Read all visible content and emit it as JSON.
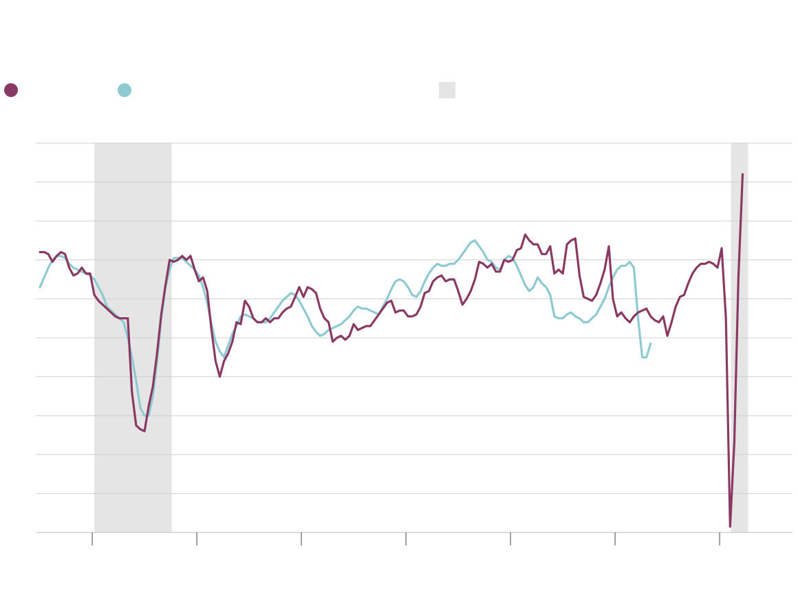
{
  "legend": {
    "series_a": {
      "label": "",
      "color": "#8a3a62"
    },
    "series_b": {
      "label": "",
      "color": "#8ecad2"
    },
    "shading": {
      "label": "",
      "color": "#e5e5e5"
    }
  },
  "chart_data": {
    "type": "line",
    "title": "",
    "xlabel": "",
    "ylabel": "",
    "xlim": [
      0,
      180
    ],
    "ylim": [
      0,
      10
    ],
    "grid": true,
    "x_ticks": [
      13.5,
      38.5,
      63.5,
      88.5,
      113.5,
      138.5,
      163.5
    ],
    "shaded_ranges": [
      [
        14,
        32.5
      ],
      [
        166.2,
        170.3
      ]
    ],
    "series": [
      {
        "color": "#8a3a62",
        "values": [
          7.2,
          7.2,
          7.15,
          6.95,
          7.1,
          7.2,
          7.15,
          6.8,
          6.6,
          6.65,
          6.8,
          6.65,
          6.65,
          6.1,
          5.95,
          5.85,
          5.75,
          5.65,
          5.55,
          5.5,
          5.5,
          5.5,
          3.6,
          2.75,
          2.65,
          2.6,
          3.25,
          3.75,
          4.6,
          5.6,
          6.35,
          7.0,
          6.95,
          7.0,
          7.1,
          7.0,
          7.1,
          6.75,
          6.45,
          6.55,
          6.2,
          5.2,
          4.4,
          4.0,
          4.4,
          4.6,
          4.9,
          5.4,
          5.35,
          5.95,
          5.8,
          5.5,
          5.4,
          5.4,
          5.5,
          5.4,
          5.5,
          5.5,
          5.65,
          5.75,
          5.8,
          6.05,
          6.3,
          6.05,
          6.3,
          6.25,
          6.15,
          5.75,
          5.5,
          5.4,
          4.9,
          5.0,
          5.05,
          4.95,
          5.05,
          5.35,
          5.2,
          5.25,
          5.3,
          5.3,
          5.45,
          5.6,
          5.75,
          5.9,
          5.95,
          5.65,
          5.7,
          5.7,
          5.55,
          5.55,
          5.6,
          5.8,
          6.15,
          6.2,
          6.45,
          6.55,
          6.6,
          6.45,
          6.5,
          6.5,
          6.2,
          5.85,
          6.0,
          6.2,
          6.5,
          6.95,
          6.9,
          6.8,
          6.9,
          6.7,
          6.7,
          7.0,
          6.95,
          7.0,
          7.25,
          7.3,
          7.65,
          7.5,
          7.4,
          7.4,
          7.15,
          7.15,
          7.35,
          6.65,
          6.75,
          6.65,
          7.4,
          7.5,
          7.55,
          6.6,
          6.05,
          6.0,
          5.95,
          6.1,
          6.4,
          6.75,
          7.35,
          6.0,
          5.55,
          5.65,
          5.5,
          5.4,
          5.55,
          5.65,
          5.7,
          5.75,
          5.55,
          5.45,
          5.4,
          5.55,
          5.05,
          5.4,
          5.8,
          6.05,
          6.1,
          6.4,
          6.65,
          6.8,
          6.9,
          6.9,
          6.95,
          6.9,
          6.8,
          7.3,
          5.5,
          0.15,
          2.3,
          6.55,
          9.2
        ],
        "x_start": 1
      },
      {
        "color": "#8ecad2",
        "values": [
          6.3,
          6.55,
          6.8,
          7.0,
          7.1,
          7.1,
          7.05,
          6.9,
          6.8,
          6.75,
          6.7,
          6.65,
          6.6,
          6.5,
          6.3,
          6.1,
          5.8,
          5.7,
          5.6,
          5.5,
          5.4,
          5.0,
          4.5,
          3.9,
          3.2,
          3.0,
          3.0,
          3.5,
          4.4,
          5.5,
          6.3,
          6.75,
          7.05,
          7.05,
          7.05,
          6.95,
          6.85,
          6.75,
          6.6,
          6.3,
          5.9,
          5.35,
          4.9,
          4.65,
          4.5,
          4.8,
          5.1,
          5.3,
          5.55,
          5.6,
          5.55,
          5.5,
          5.4,
          5.4,
          5.4,
          5.5,
          5.65,
          5.8,
          5.95,
          6.05,
          6.15,
          6.1,
          5.95,
          5.75,
          5.55,
          5.3,
          5.15,
          5.05,
          5.1,
          5.2,
          5.25,
          5.3,
          5.35,
          5.45,
          5.55,
          5.7,
          5.8,
          5.75,
          5.75,
          5.7,
          5.65,
          5.6,
          5.8,
          6.0,
          6.25,
          6.45,
          6.5,
          6.45,
          6.3,
          6.1,
          6.05,
          6.2,
          6.45,
          6.65,
          6.8,
          6.9,
          6.85,
          6.85,
          6.9,
          6.9,
          7.0,
          7.15,
          7.3,
          7.45,
          7.5,
          7.35,
          7.2,
          7.0,
          6.95,
          6.8,
          6.75,
          7.0,
          7.1,
          7.05,
          6.85,
          6.6,
          6.35,
          6.2,
          6.3,
          6.55,
          6.4,
          6.3,
          6.1,
          5.55,
          5.5,
          5.5,
          5.6,
          5.65,
          5.55,
          5.5,
          5.4,
          5.4,
          5.5,
          5.6,
          5.8,
          6.0,
          6.3,
          6.55,
          6.75,
          6.85,
          6.85,
          6.95,
          6.8,
          5.5,
          4.5,
          4.5,
          4.85
        ],
        "x_start": 1
      }
    ]
  }
}
